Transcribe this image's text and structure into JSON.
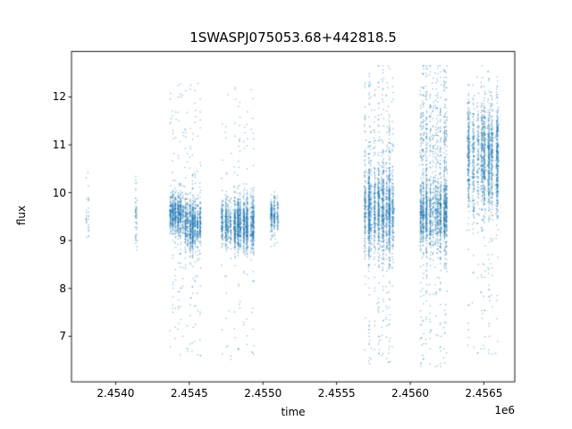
{
  "figure": {
    "background": "#ffffff"
  },
  "chart_data": {
    "type": "scatter",
    "title": "1SWASPJ075053.68+442818.5",
    "xlabel": "time",
    "ylabel": "flux",
    "x_offset_text": "1e6",
    "grid": false,
    "legend": null,
    "xlim": [
      2453700,
      2456710
    ],
    "ylim": [
      6.05,
      12.95
    ],
    "x_ticks": [
      2454000,
      2454500,
      2455000,
      2455500,
      2456000,
      2456500
    ],
    "x_tick_labels": [
      "2.4540",
      "2.4545",
      "2.4550",
      "2.4555",
      "2.4560",
      "2.4565"
    ],
    "y_ticks": [
      7,
      8,
      9,
      10,
      11,
      12
    ],
    "y_tick_labels": [
      "7",
      "8",
      "9",
      "10",
      "11",
      "12"
    ],
    "point_color": "#1f77b4",
    "marker_alpha": 0.5,
    "marker_size_px": 1.3,
    "flux_clip": [
      6.3,
      12.65
    ],
    "seed": 42,
    "clusters": [
      {
        "t_min": 2453795,
        "t_max": 2453818,
        "n": 30,
        "stripes": 2,
        "components": [
          {
            "mean": 9.7,
            "sigma": 0.35,
            "weight": 0.85
          }
        ],
        "tail": {
          "weight": 0.15,
          "min": 8.95,
          "max": 10.45
        }
      },
      {
        "t_min": 2454130,
        "t_max": 2454148,
        "n": 55,
        "stripes": 2,
        "components": [
          {
            "mean": 9.5,
            "sigma": 0.35,
            "weight": 0.85
          }
        ],
        "tail": {
          "weight": 0.15,
          "min": 8.45,
          "max": 10.45
        }
      },
      {
        "t_min": 2454362,
        "t_max": 2454462,
        "n": 780,
        "stripes": 6,
        "components": [
          {
            "mean": 9.55,
            "sigma": 0.22,
            "weight": 0.88
          }
        ],
        "tail": {
          "weight": 0.12,
          "min": 6.6,
          "max": 12.3
        }
      },
      {
        "t_min": 2454468,
        "t_max": 2454578,
        "n": 950,
        "stripes": 7,
        "components": [
          {
            "mean": 9.35,
            "sigma": 0.27,
            "weight": 0.9
          }
        ],
        "tail": {
          "weight": 0.1,
          "min": 6.4,
          "max": 12.3
        }
      },
      {
        "t_min": 2454710,
        "t_max": 2454948,
        "n": 1700,
        "stripes": 11,
        "components": [
          {
            "mean": 9.35,
            "sigma": 0.27,
            "weight": 0.92
          }
        ],
        "tail": {
          "weight": 0.08,
          "min": 6.5,
          "max": 12.25
        }
      },
      {
        "t_min": 2455050,
        "t_max": 2455108,
        "n": 280,
        "stripes": 3,
        "components": [
          {
            "mean": 9.5,
            "sigma": 0.2,
            "weight": 0.95
          }
        ],
        "tail": {
          "weight": 0.05,
          "min": 8.85,
          "max": 10.05
        }
      },
      {
        "t_min": 2455688,
        "t_max": 2455892,
        "n": 2000,
        "stripes": 10,
        "components": [
          {
            "mean": 9.6,
            "sigma": 0.45,
            "weight": 0.78
          },
          {
            "mean": 10.5,
            "sigma": 0.9,
            "weight": 0.1
          }
        ],
        "tail": {
          "weight": 0.12,
          "min": 6.4,
          "max": 12.6
        }
      },
      {
        "t_min": 2456062,
        "t_max": 2456258,
        "n": 2000,
        "stripes": 10,
        "components": [
          {
            "mean": 9.55,
            "sigma": 0.38,
            "weight": 0.66
          },
          {
            "mean": 11.2,
            "sigma": 0.75,
            "weight": 0.2
          }
        ],
        "tail": {
          "weight": 0.14,
          "min": 6.35,
          "max": 12.6
        }
      },
      {
        "t_min": 2456385,
        "t_max": 2456600,
        "n": 1800,
        "stripes": 8,
        "components": [
          {
            "mean": 10.85,
            "sigma": 0.55,
            "weight": 0.8
          },
          {
            "mean": 9.95,
            "sigma": 0.3,
            "weight": 0.08
          }
        ],
        "tail": {
          "weight": 0.12,
          "min": 6.6,
          "max": 12.55
        }
      }
    ]
  }
}
